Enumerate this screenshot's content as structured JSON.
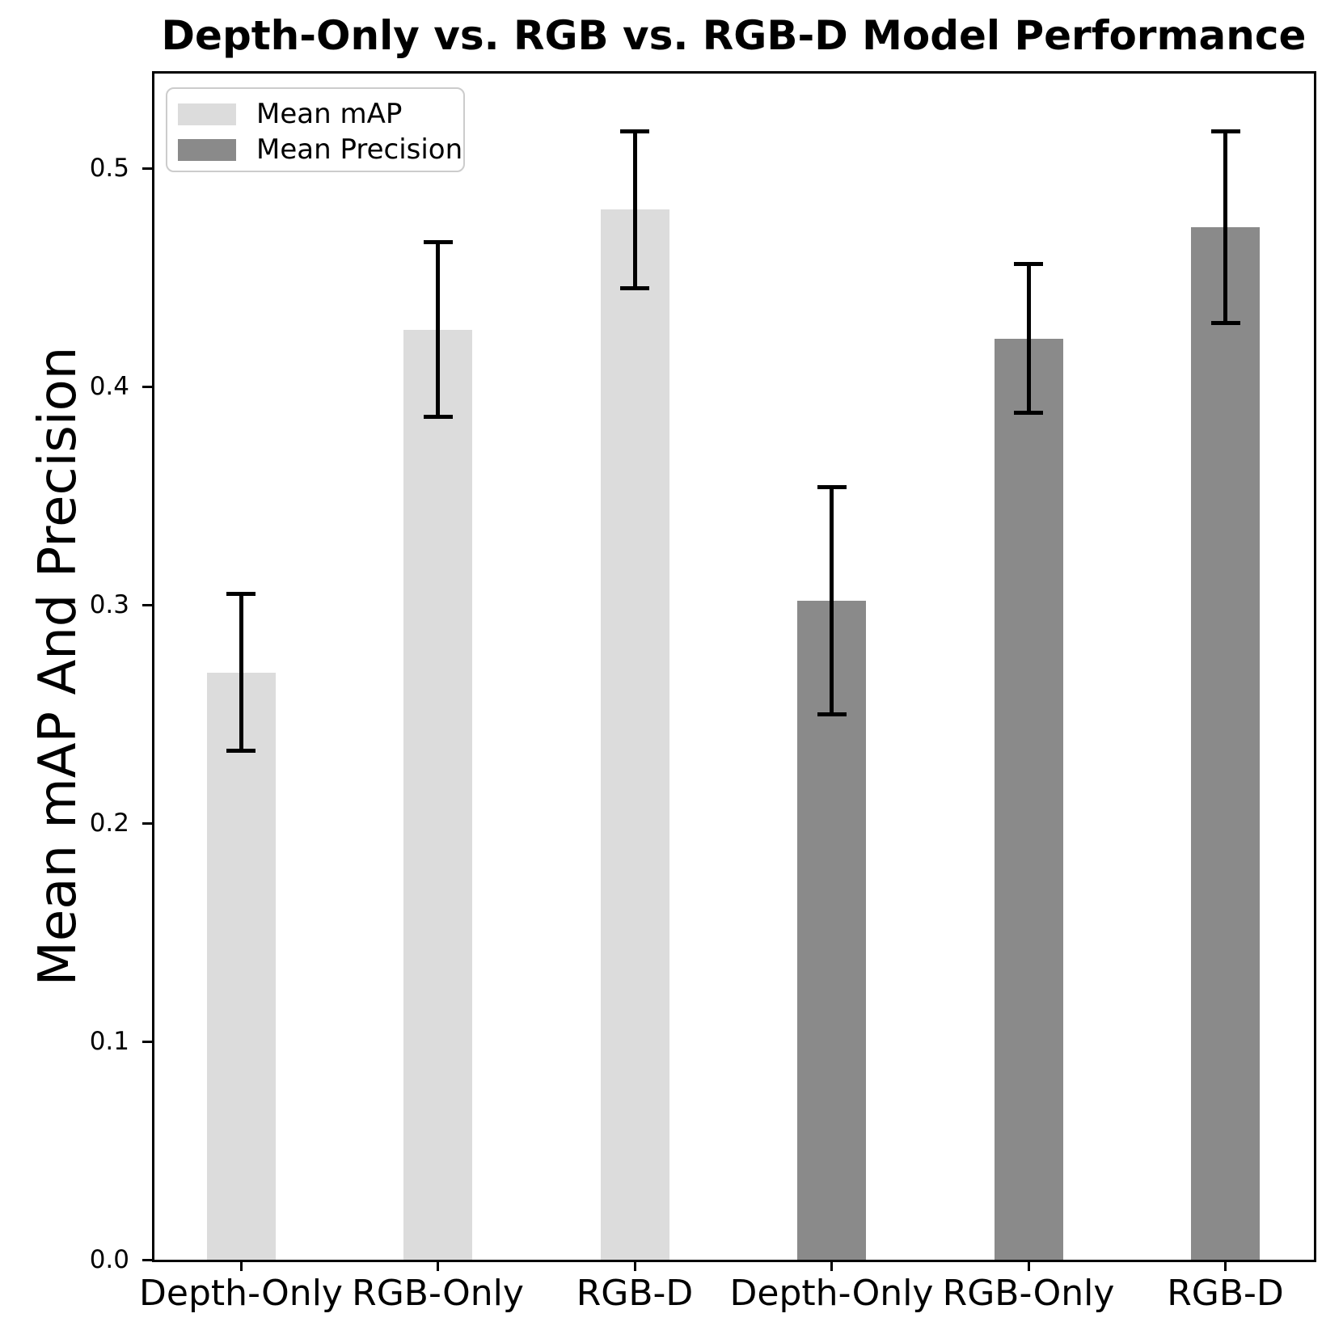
{
  "chart_data": {
    "type": "bar",
    "title": "Depth-Only vs. RGB vs. RGB-D Model Performance",
    "ylabel": "Mean mAP And Precision",
    "xlabel": "",
    "categories": [
      "Depth-Only",
      "RGB-Only",
      "RGB-D",
      "Depth-Only",
      "RGB-Only",
      "RGB-D"
    ],
    "yticks": [
      0.0,
      0.1,
      0.2,
      0.3,
      0.4,
      0.5
    ],
    "ylim": [
      0,
      0.543
    ],
    "grid": false,
    "legend_position": "upper-left",
    "series": [
      {
        "name": "Mean mAP",
        "color": "#DCDCDC",
        "positions": [
          0,
          1,
          2
        ],
        "values": [
          0.269,
          0.426,
          0.481
        ],
        "errors": [
          0.036,
          0.04,
          0.036
        ]
      },
      {
        "name": "Mean Precision",
        "color": "#8A8A8A",
        "positions": [
          3,
          4,
          5
        ],
        "values": [
          0.302,
          0.422,
          0.473
        ],
        "errors": [
          0.052,
          0.034,
          0.044
        ]
      }
    ],
    "error_bar_color": "#000000",
    "axis_color": "#000000",
    "background_color": "#FFFFFF"
  }
}
